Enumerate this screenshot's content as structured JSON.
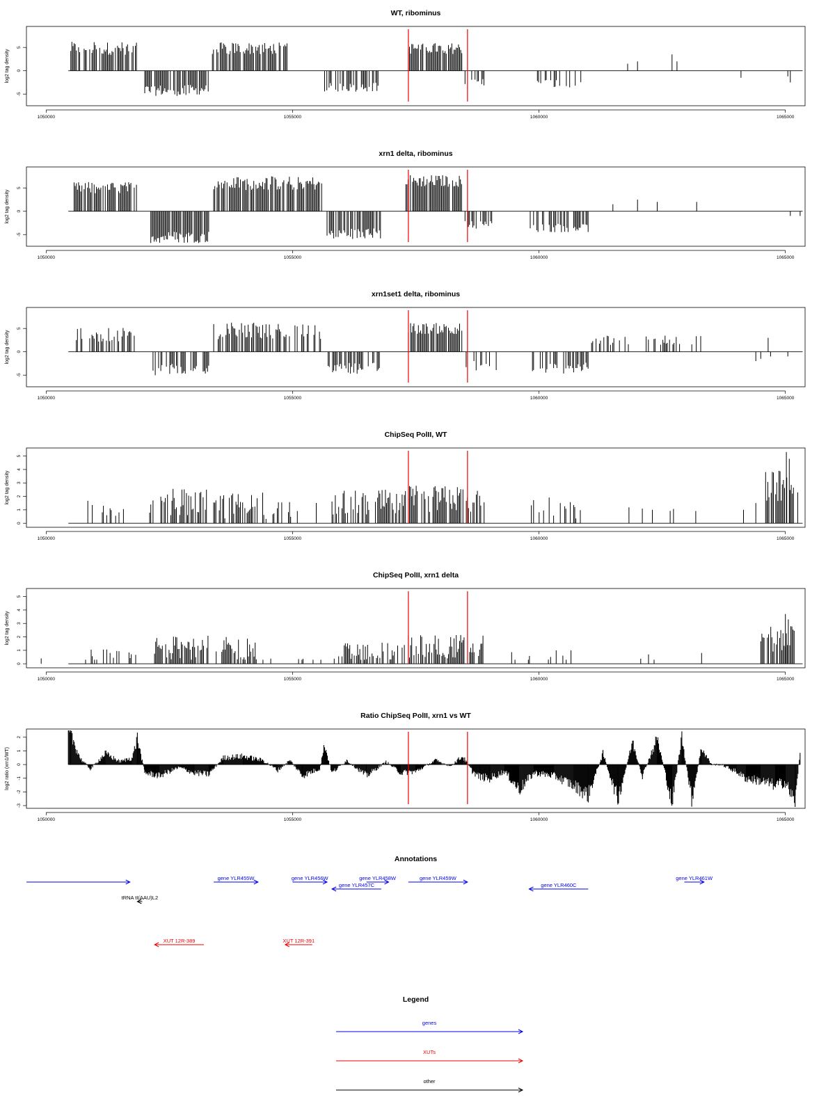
{
  "figure": {
    "colors": {
      "genes": "#0000ee",
      "xuts": "#ee0000",
      "other": "#000000",
      "marker": "#ee0000",
      "bars": "#000000"
    }
  },
  "chart_data": [
    {
      "type": "bar",
      "title": "WT, ribominus",
      "ylabel": "log2 tag density",
      "xlim": [
        1049600,
        1065400
      ],
      "ylim": [
        -7.5,
        9.5
      ],
      "yticks": [
        -5,
        0,
        5
      ],
      "ytick_labels": [
        "-5",
        "0",
        "5"
      ],
      "xticks": [
        1050000,
        1055000,
        1060000,
        1065000
      ],
      "xtick_labels": [
        "1050000",
        "1055000",
        "1060000",
        "1065000"
      ],
      "markers": [
        1057350,
        1058550
      ],
      "signal": [
        {
          "from": 1050500,
          "to": 1051850,
          "value": 4.8,
          "noise": 1.4,
          "density": 0.75
        },
        {
          "from": 1052000,
          "to": 1053300,
          "value": -4.2,
          "noise": 1.2,
          "density": 0.75
        },
        {
          "from": 1053350,
          "to": 1054900,
          "value": 4.8,
          "noise": 1.3,
          "density": 0.8
        },
        {
          "from": 1055650,
          "to": 1056750,
          "value": -3.5,
          "noise": 1.0,
          "density": 0.55
        },
        {
          "from": 1057350,
          "to": 1058450,
          "value": 4.8,
          "noise": 1.2,
          "density": 0.85
        },
        {
          "from": 1058500,
          "to": 1058950,
          "value": -2.5,
          "noise": 1.0,
          "density": 0.4
        },
        {
          "from": 1059900,
          "to": 1060900,
          "value": -2.8,
          "noise": 1.0,
          "density": 0.35
        }
      ],
      "spikes": [
        [
          1061800,
          1.5
        ],
        [
          1062000,
          2.0
        ],
        [
          1062700,
          3.5
        ],
        [
          1062800,
          2.0
        ],
        [
          1064100,
          -1.5
        ],
        [
          1065050,
          -1.2
        ],
        [
          1065100,
          -2.5
        ]
      ]
    },
    {
      "type": "bar",
      "title": "xrn1 delta, ribominus",
      "ylabel": "log2 tag density",
      "xlim": [
        1049600,
        1065400
      ],
      "ylim": [
        -7.5,
        9.5
      ],
      "yticks": [
        -5,
        0,
        5
      ],
      "ytick_labels": [
        "-5",
        "0",
        "5"
      ],
      "xticks": [
        1050000,
        1055000,
        1060000,
        1065000
      ],
      "xtick_labels": [
        "1050000",
        "1055000",
        "1060000",
        "1065000"
      ],
      "markers": [
        1057350,
        1058550
      ],
      "signal": [
        {
          "from": 1050500,
          "to": 1051850,
          "value": 5.0,
          "noise": 1.3,
          "density": 0.8
        },
        {
          "from": 1052100,
          "to": 1053300,
          "value": -5.5,
          "noise": 1.3,
          "density": 0.85
        },
        {
          "from": 1053400,
          "to": 1055600,
          "value": 6.0,
          "noise": 1.5,
          "density": 0.85
        },
        {
          "from": 1055700,
          "to": 1056800,
          "value": -4.8,
          "noise": 1.2,
          "density": 0.7
        },
        {
          "from": 1057300,
          "to": 1058450,
          "value": 6.5,
          "noise": 1.3,
          "density": 0.9
        },
        {
          "from": 1058500,
          "to": 1059100,
          "value": -3.0,
          "noise": 1.0,
          "density": 0.5
        },
        {
          "from": 1059800,
          "to": 1061000,
          "value": -3.5,
          "noise": 1.0,
          "density": 0.5
        }
      ],
      "spikes": [
        [
          1061500,
          1.5
        ],
        [
          1062000,
          2.5
        ],
        [
          1062400,
          2.0
        ],
        [
          1063200,
          2.0
        ],
        [
          1065100,
          -1.0
        ],
        [
          1065300,
          -1.0
        ]
      ]
    },
    {
      "type": "bar",
      "title": "xrn1set1 delta, ribominus",
      "ylabel": "log2 tag density",
      "xlim": [
        1049600,
        1065400
      ],
      "ylim": [
        -7.5,
        9.5
      ],
      "yticks": [
        -5,
        0,
        5
      ],
      "ytick_labels": [
        "-5",
        "0",
        "5"
      ],
      "xticks": [
        1050000,
        1055000,
        1060000,
        1065000
      ],
      "xtick_labels": [
        "1050000",
        "1055000",
        "1060000",
        "1065000"
      ],
      "markers": [
        1057350,
        1058550
      ],
      "signal": [
        {
          "from": 1050500,
          "to": 1051850,
          "value": 3.5,
          "noise": 1.6,
          "density": 0.5
        },
        {
          "from": 1052100,
          "to": 1053300,
          "value": -4.0,
          "noise": 1.4,
          "density": 0.65
        },
        {
          "from": 1053400,
          "to": 1055600,
          "value": 4.5,
          "noise": 1.8,
          "density": 0.55
        },
        {
          "from": 1055700,
          "to": 1056800,
          "value": -3.5,
          "noise": 1.2,
          "density": 0.55
        },
        {
          "from": 1057350,
          "to": 1058450,
          "value": 5.0,
          "noise": 1.2,
          "density": 0.8
        },
        {
          "from": 1058500,
          "to": 1059200,
          "value": -3.0,
          "noise": 1.2,
          "density": 0.5
        },
        {
          "from": 1059800,
          "to": 1061000,
          "value": -3.5,
          "noise": 1.2,
          "density": 0.5
        },
        {
          "from": 1061000,
          "to": 1063300,
          "value": 2.5,
          "noise": 1.2,
          "density": 0.3
        }
      ],
      "spikes": [
        [
          1064400,
          -2.0
        ],
        [
          1064500,
          -1.5
        ],
        [
          1064650,
          3.0
        ],
        [
          1064700,
          -1.0
        ],
        [
          1065050,
          -1.0
        ]
      ]
    },
    {
      "type": "bar",
      "title": "ChipSeq PolII, WT",
      "ylabel": "log2 tag density",
      "xlim": [
        1049600,
        1065400
      ],
      "ylim": [
        -0.3,
        5.6
      ],
      "yticks": [
        0,
        1,
        2,
        3,
        4,
        5
      ],
      "ytick_labels": [
        "0",
        "1",
        "2",
        "3",
        "4",
        "5"
      ],
      "xticks": [
        1050000,
        1055000,
        1060000,
        1065000
      ],
      "xtick_labels": [
        "1050000",
        "1055000",
        "1060000",
        "1065000"
      ],
      "markers": [
        1057350,
        1058550
      ],
      "signal": [
        {
          "from": 1050800,
          "to": 1051700,
          "value": 1.1,
          "noise": 0.6,
          "density": 0.35
        },
        {
          "from": 1052100,
          "to": 1053300,
          "value": 1.6,
          "noise": 1.0,
          "density": 0.7
        },
        {
          "from": 1053400,
          "to": 1054500,
          "value": 1.3,
          "noise": 1.0,
          "density": 0.55
        },
        {
          "from": 1054600,
          "to": 1055500,
          "value": 1.0,
          "noise": 0.6,
          "density": 0.2
        },
        {
          "from": 1055800,
          "to": 1057300,
          "value": 1.5,
          "noise": 1.0,
          "density": 0.65
        },
        {
          "from": 1057350,
          "to": 1058900,
          "value": 1.8,
          "noise": 1.0,
          "density": 0.75
        },
        {
          "from": 1059800,
          "to": 1060900,
          "value": 1.1,
          "noise": 1.0,
          "density": 0.3
        },
        {
          "from": 1061600,
          "to": 1063300,
          "value": 1.0,
          "noise": 0.2,
          "density": 0.06
        },
        {
          "from": 1064600,
          "to": 1065200,
          "value": 2.8,
          "noise": 1.2,
          "density": 0.9
        }
      ],
      "spikes": [
        [
          1064150,
          1.0
        ],
        [
          1064400,
          1.5
        ],
        [
          1065020,
          5.3
        ],
        [
          1065080,
          4.8
        ],
        [
          1065250,
          2.3
        ]
      ]
    },
    {
      "type": "bar",
      "title": "ChipSeq PolII, xrn1 delta",
      "ylabel": "log2 tag density",
      "xlim": [
        1049600,
        1065400
      ],
      "ylim": [
        -0.3,
        5.6
      ],
      "yticks": [
        0,
        1,
        2,
        3,
        4,
        5
      ],
      "ytick_labels": [
        "0",
        "1",
        "2",
        "3",
        "4",
        "5"
      ],
      "xticks": [
        1050000,
        1055000,
        1060000,
        1065000
      ],
      "xtick_labels": [
        "1050000",
        "1055000",
        "1060000",
        "1065000"
      ],
      "markers": [
        1057350,
        1058550
      ],
      "signal": [
        {
          "from": 1050800,
          "to": 1052000,
          "value": 0.5,
          "noise": 0.6,
          "density": 0.3
        },
        {
          "from": 1052200,
          "to": 1053300,
          "value": 1.2,
          "noise": 0.9,
          "density": 0.7
        },
        {
          "from": 1053450,
          "to": 1054300,
          "value": 1.1,
          "noise": 0.9,
          "density": 0.7
        },
        {
          "from": 1054400,
          "to": 1055600,
          "value": 0.4,
          "noise": 0.5,
          "density": 0.25
        },
        {
          "from": 1055800,
          "to": 1057300,
          "value": 0.9,
          "noise": 0.7,
          "density": 0.6
        },
        {
          "from": 1057350,
          "to": 1058900,
          "value": 1.3,
          "noise": 0.9,
          "density": 0.7
        },
        {
          "from": 1059400,
          "to": 1060800,
          "value": 0.4,
          "noise": 0.6,
          "density": 0.12
        },
        {
          "from": 1061500,
          "to": 1063300,
          "value": 0.4,
          "noise": 0.5,
          "density": 0.06
        },
        {
          "from": 1064500,
          "to": 1065200,
          "value": 1.8,
          "noise": 1.0,
          "density": 0.85
        }
      ],
      "spikes": [
        [
          1049900,
          0.4
        ],
        [
          1060350,
          1.0
        ],
        [
          1060650,
          1.0
        ],
        [
          1063300,
          0.8
        ],
        [
          1065000,
          3.7
        ],
        [
          1065060,
          3.3
        ]
      ]
    },
    {
      "type": "area",
      "title": "Ratio ChipSeq PolII, xrn1 vs WT",
      "ylabel": "log2 ratio (xrn1/WT)",
      "xlim": [
        1049600,
        1065400
      ],
      "ylim": [
        -3.2,
        2.6
      ],
      "yticks": [
        -3,
        -2,
        -1,
        0,
        1,
        2
      ],
      "ytick_labels": [
        "-3",
        "-2",
        "-1",
        "0",
        "1",
        "2"
      ],
      "xticks": [
        1050000,
        1055000,
        1060000,
        1065000
      ],
      "xtick_labels": [
        "1050000",
        "1055000",
        "1060000",
        "1065000"
      ],
      "markers": [
        1057350,
        1058550
      ],
      "profile": {
        "x": [
          1050450,
          1050500,
          1050700,
          1050900,
          1051200,
          1051500,
          1051750,
          1051850,
          1052000,
          1052300,
          1052700,
          1053000,
          1053300,
          1053600,
          1054000,
          1054400,
          1054700,
          1054950,
          1055200,
          1055550,
          1055650,
          1055800,
          1056100,
          1056500,
          1056900,
          1057200,
          1057500,
          1057900,
          1058200,
          1058450,
          1058650,
          1058800,
          1059000,
          1059300,
          1059600,
          1059900,
          1060300,
          1060700,
          1061000,
          1061300,
          1061600,
          1061900,
          1062100,
          1062400,
          1062700,
          1062900,
          1063100,
          1063300,
          1063500,
          1063700,
          1064000,
          1064200,
          1064500,
          1064800,
          1065000,
          1065200,
          1065300
        ],
        "y": [
          2.5,
          2.2,
          0.4,
          -0.3,
          0.8,
          0.2,
          0.5,
          1.9,
          -0.6,
          -0.8,
          -0.2,
          -0.6,
          -0.7,
          0.5,
          0.6,
          0.3,
          -0.4,
          0.3,
          -0.8,
          -0.3,
          1.4,
          -0.6,
          0.3,
          -0.8,
          0.2,
          -0.6,
          -0.5,
          0.3,
          -0.1,
          0.6,
          -0.5,
          -0.9,
          -1.0,
          -0.5,
          -1.8,
          -0.6,
          -0.8,
          -1.5,
          -2.2,
          0.8,
          -2.5,
          1.6,
          -0.8,
          1.9,
          -2.8,
          2.0,
          -2.5,
          1.2,
          0.0,
          0.0,
          -0.5,
          -1.0,
          -1.2,
          -1.5,
          -1.3,
          -2.8,
          1.1
        ]
      }
    },
    {
      "type": "annotation",
      "title": "Annotations",
      "xlim": [
        1049600,
        1065400
      ],
      "features": [
        {
          "label": "",
          "from": 1049600,
          "to": 1051700,
          "strand": "+",
          "kind": "gene",
          "row": 0
        },
        {
          "label": "tRNA tI(AAU)L2",
          "from": 1051850,
          "to": 1051950,
          "strand": "-",
          "kind": "other",
          "row": 1
        },
        {
          "label": "gene YLR455W",
          "from": 1053400,
          "to": 1054300,
          "strand": "+",
          "kind": "gene",
          "row": 0
        },
        {
          "label": "gene YLR456W",
          "from": 1055000,
          "to": 1055700,
          "strand": "+",
          "kind": "gene",
          "row": 0
        },
        {
          "label": "gene YLR458W",
          "from": 1056500,
          "to": 1056950,
          "strand": "+",
          "kind": "gene",
          "row": 0
        },
        {
          "label": "gene YLR457C",
          "from": 1055800,
          "to": 1056800,
          "strand": "-",
          "kind": "gene",
          "row": 1
        },
        {
          "label": "gene YLR459W",
          "from": 1057350,
          "to": 1058550,
          "strand": "+",
          "kind": "gene",
          "row": 0
        },
        {
          "label": "gene YLR460C",
          "from": 1059800,
          "to": 1061000,
          "strand": "-",
          "kind": "gene",
          "row": 1
        },
        {
          "label": "gene YLR461W",
          "from": 1062950,
          "to": 1063350,
          "strand": "+",
          "kind": "gene",
          "row": 0
        },
        {
          "label": "XUT 12R-389",
          "from": 1052200,
          "to": 1053200,
          "strand": "-",
          "kind": "xut",
          "row": 2
        },
        {
          "label": "XUT 12R-391",
          "from": 1054850,
          "to": 1055400,
          "strand": "-",
          "kind": "xut",
          "row": 2
        }
      ]
    },
    {
      "type": "legend",
      "title": "Legend",
      "entries": [
        {
          "label": "genes",
          "kind": "gene"
        },
        {
          "label": "XUTs",
          "kind": "xut"
        },
        {
          "label": "other",
          "kind": "other"
        }
      ]
    }
  ]
}
